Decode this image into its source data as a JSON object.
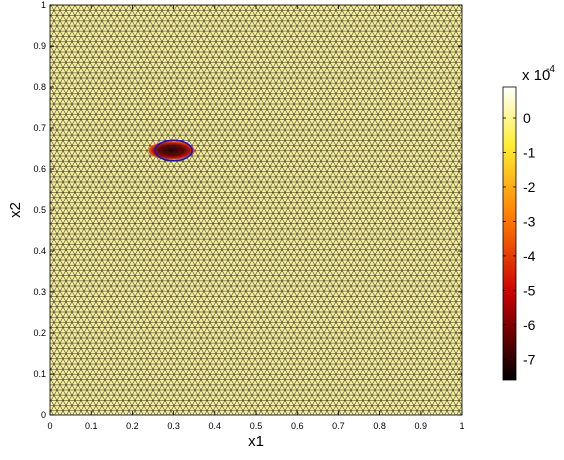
{
  "chart_data": {
    "type": "heatmap",
    "title": "",
    "xlabel": "x1",
    "ylabel": "x2",
    "xlim": [
      0,
      1
    ],
    "ylim": [
      0,
      1
    ],
    "xticks": [
      "0",
      "0.1",
      "0.2",
      "0.3",
      "0.4",
      "0.5",
      "0.6",
      "0.7",
      "0.8",
      "0.9",
      "1"
    ],
    "yticks": [
      "0",
      "0.1",
      "0.2",
      "0.3",
      "0.4",
      "0.5",
      "0.6",
      "0.7",
      "0.8",
      "0.9",
      "1"
    ],
    "mesh": "triangular",
    "colormap": "hot",
    "colorbar": {
      "multiplier_base": "x 10",
      "multiplier_exponent": "-4",
      "ticks": [
        "0",
        "-1",
        "-2",
        "-3",
        "-4",
        "-5",
        "-6",
        "-7"
      ],
      "tick_values": [
        0,
        -1,
        -2,
        -3,
        -4,
        -5,
        -6,
        -7
      ],
      "range": [
        -7.6,
        0.9
      ]
    },
    "inclusion": {
      "center": [
        0.3,
        0.645
      ],
      "semi_axes": [
        0.045,
        0.025
      ],
      "outline_color": "#1010e0",
      "min_value": -7.6
    }
  }
}
